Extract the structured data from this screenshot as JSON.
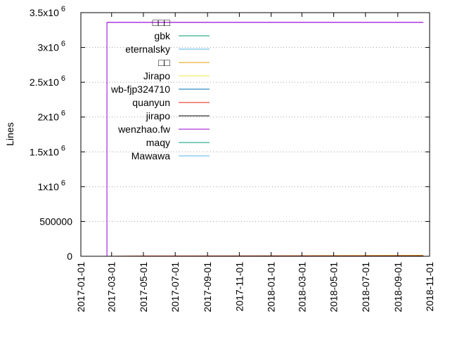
{
  "chart_data": {
    "type": "line",
    "title": "",
    "xlabel": "",
    "ylabel": "Lines",
    "ylim": [
      0,
      3500000
    ],
    "xlim": [
      "2017-01-01",
      "2018-11-01"
    ],
    "y_ticks": [
      {
        "value": 0,
        "base": "0",
        "exp": ""
      },
      {
        "value": 500000,
        "base": "500000",
        "exp": ""
      },
      {
        "value": 1000000,
        "base": "1x10",
        "exp": "6"
      },
      {
        "value": 1500000,
        "base": "1.5x10",
        "exp": "6"
      },
      {
        "value": 2000000,
        "base": "2x10",
        "exp": "6"
      },
      {
        "value": 2500000,
        "base": "2.5x10",
        "exp": "6"
      },
      {
        "value": 3000000,
        "base": "3x10",
        "exp": "6"
      },
      {
        "value": 3500000,
        "base": "3.5x10",
        "exp": "6"
      }
    ],
    "x_ticks": [
      "2017-01-01",
      "2017-03-01",
      "2017-05-01",
      "2017-07-01",
      "2017-09-01",
      "2017-11-01",
      "2018-01-01",
      "2018-03-01",
      "2018-05-01",
      "2018-07-01",
      "2018-09-01",
      "2018-11-01"
    ],
    "grid": "horizontal dotted",
    "legend_position": "top-left",
    "series": [
      {
        "name": "□□□",
        "color": "#9400d3",
        "points": [
          [
            "2017-02-20",
            3360000
          ],
          [
            "2018-10-20",
            3360000
          ]
        ]
      },
      {
        "name": "gbk",
        "color": "#009e73",
        "points": [
          [
            "2017-02-20",
            0
          ],
          [
            "2018-10-20",
            0
          ]
        ]
      },
      {
        "name": "eternalsky",
        "color": "#56b4e9",
        "points": [
          [
            "2017-02-20",
            0
          ],
          [
            "2018-10-20",
            0
          ]
        ]
      },
      {
        "name": "□□",
        "color": "#e69f00",
        "points": [
          [
            "2017-02-20",
            0
          ],
          [
            "2017-09-25",
            5000
          ],
          [
            "2018-10-20",
            12000
          ]
        ]
      },
      {
        "name": "Jirapo",
        "color": "#f0e442",
        "points": [
          [
            "2017-02-20",
            0
          ],
          [
            "2018-10-20",
            0
          ]
        ]
      },
      {
        "name": "wb-fjp324710",
        "color": "#0072b2",
        "points": [
          [
            "2017-02-20",
            0
          ],
          [
            "2018-10-20",
            0
          ]
        ]
      },
      {
        "name": "quanyun",
        "color": "#e51e10",
        "points": [
          [
            "2017-02-20",
            0
          ],
          [
            "2017-05-01",
            4000
          ],
          [
            "2018-10-20",
            6000
          ]
        ]
      },
      {
        "name": "jirapo",
        "color": "#000000",
        "points": [
          [
            "2017-02-20",
            0
          ],
          [
            "2018-10-20",
            2000
          ]
        ]
      },
      {
        "name": "wenzhao.fw",
        "color": "#9400d3",
        "points": [
          [
            "2017-01-01",
            0
          ],
          [
            "2017-02-20",
            0
          ],
          [
            "2017-02-20",
            3360000
          ],
          [
            "2018-10-20",
            3360000
          ]
        ]
      },
      {
        "name": "maqy",
        "color": "#009e73",
        "points": [
          [
            "2017-02-20",
            0
          ],
          [
            "2018-10-20",
            0
          ]
        ]
      },
      {
        "name": "Mawawa",
        "color": "#56b4e9",
        "points": [
          [
            "2017-02-20",
            0
          ],
          [
            "2018-10-20",
            0
          ]
        ]
      }
    ]
  }
}
